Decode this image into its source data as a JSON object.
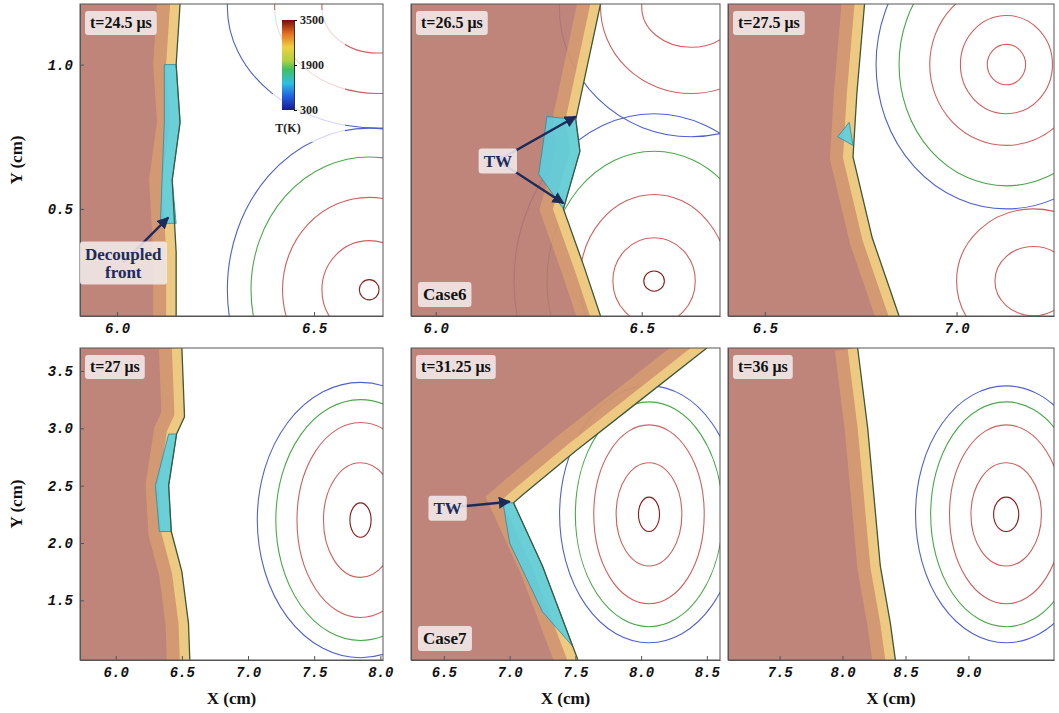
{
  "chart_data": [
    {
      "type": "field",
      "title": "t=24.5 μs",
      "y_label": "Y (cm)",
      "xlim": [
        5.906,
        6.675
      ],
      "ylim": [
        0.129,
        1.21
      ],
      "xticks": [
        {
          "value": 6.0,
          "label": "6.0"
        },
        6.5
      ],
      "yticks": [
        0.5,
        {
          "value": 1.0,
          "label": "1.0"
        }
      ],
      "front": {
        "x": [
          6.16,
          6.15,
          6.16,
          6.14,
          6.15,
          6.15
        ],
        "y": [
          1.21,
          1.0,
          0.8,
          0.6,
          0.35,
          0.129
        ]
      },
      "pocket": {
        "x": [
          6.12,
          6.15,
          6.16,
          6.14,
          6.15,
          6.11,
          6.12
        ],
        "y": [
          1.0,
          1.0,
          0.8,
          0.6,
          0.45,
          0.45,
          0.8
        ]
      },
      "contours": [
        {
          "cx": 6.64,
          "cy": 0.22,
          "rx": 0.025,
          "ry": 0.035,
          "color": "#8b1a1a"
        },
        {
          "cx": 6.64,
          "cy": 0.22,
          "rx": 0.12,
          "ry": 0.17,
          "color": "#d06060"
        },
        {
          "cx": 6.64,
          "cy": 0.22,
          "rx": 0.22,
          "ry": 0.32,
          "color": "#d06060"
        },
        {
          "cx": 6.64,
          "cy": 0.22,
          "rx": 0.3,
          "ry": 0.46,
          "color": "#4aa84a"
        },
        {
          "cx": 6.64,
          "cy": 0.22,
          "rx": 0.36,
          "ry": 0.56,
          "color": "#5060d0"
        },
        {
          "cx": 6.66,
          "cy": 1.2,
          "rx": 0.14,
          "ry": 0.16,
          "color": "#d06060"
        },
        {
          "cx": 6.66,
          "cy": 1.2,
          "rx": 0.26,
          "ry": 0.3,
          "color": "#d06060"
        },
        {
          "cx": 6.66,
          "cy": 1.2,
          "rx": 0.38,
          "ry": 0.42,
          "color": "#5060d0"
        }
      ],
      "colorbar": {
        "range": [
          300,
          3500
        ],
        "ticks": [
          300,
          1900,
          3500
        ],
        "label": "T(K)"
      },
      "annotations": [
        {
          "text": "Decoupled front",
          "points": [
            [
              6.13,
              0.47
            ]
          ]
        }
      ]
    },
    {
      "type": "field",
      "title": "t=26.5 μs",
      "tick_labels": "x",
      "xlim": [
        5.94,
        6.69
      ],
      "ylim": [
        0.129,
        1.21
      ],
      "xticks": [
        {
          "value": 6.0,
          "label": "6.0"
        },
        6.5
      ],
      "front": {
        "x": [
          6.4,
          6.34,
          6.35,
          6.31,
          6.36,
          6.4
        ],
        "y": [
          1.21,
          0.81,
          0.7,
          0.5,
          0.3,
          0.129
        ]
      },
      "pocket": {
        "x": [
          6.27,
          6.34,
          6.35,
          6.31,
          6.25
        ],
        "y": [
          0.82,
          0.81,
          0.7,
          0.5,
          0.62
        ]
      },
      "contours": [
        {
          "cx": 6.53,
          "cy": 0.25,
          "rx": 0.025,
          "ry": 0.035,
          "color": "#8b1a1a"
        },
        {
          "cx": 6.53,
          "cy": 0.25,
          "rx": 0.1,
          "ry": 0.15,
          "color": "#d06060"
        },
        {
          "cx": 6.53,
          "cy": 0.25,
          "rx": 0.18,
          "ry": 0.3,
          "color": "#d06060"
        },
        {
          "cx": 6.53,
          "cy": 0.25,
          "rx": 0.26,
          "ry": 0.45,
          "color": "#4aa84a"
        },
        {
          "cx": 6.53,
          "cy": 0.25,
          "rx": 0.34,
          "ry": 0.58,
          "color": "#5060d0"
        },
        {
          "cx": 6.62,
          "cy": 1.2,
          "rx": 0.12,
          "ry": 0.14,
          "color": "#d06060"
        },
        {
          "cx": 6.62,
          "cy": 1.2,
          "rx": 0.22,
          "ry": 0.3,
          "color": "#d06060"
        },
        {
          "cx": 6.62,
          "cy": 1.2,
          "rx": 0.32,
          "ry": 0.45,
          "color": "#5060d0"
        }
      ],
      "annotations": [
        {
          "text": "TW",
          "points": [
            [
              6.34,
              0.82
            ],
            [
              6.31,
              0.52
            ]
          ]
        },
        {
          "text": "Case6"
        }
      ]
    },
    {
      "type": "field",
      "title": "t=27.5 μs",
      "tick_labels": "x",
      "xlim": [
        6.404,
        7.254
      ],
      "ylim": [
        0.129,
        1.21
      ],
      "xticks": [
        6.5,
        {
          "value": 7.0,
          "label": "7.0"
        }
      ],
      "front": {
        "x": [
          6.76,
          6.74,
          6.73,
          6.78,
          6.85
        ],
        "y": [
          1.21,
          0.9,
          0.68,
          0.4,
          0.129
        ]
      },
      "pocket": {
        "x": [
          6.69,
          6.73,
          6.72
        ],
        "y": [
          0.75,
          0.72,
          0.8
        ]
      },
      "contours": [
        {
          "cx": 7.13,
          "cy": 1.0,
          "rx": 0.05,
          "ry": 0.07,
          "color": "#d06060"
        },
        {
          "cx": 7.13,
          "cy": 1.0,
          "rx": 0.12,
          "ry": 0.17,
          "color": "#d06060"
        },
        {
          "cx": 7.13,
          "cy": 1.0,
          "rx": 0.2,
          "ry": 0.28,
          "color": "#d06060"
        },
        {
          "cx": 7.13,
          "cy": 1.0,
          "rx": 0.28,
          "ry": 0.42,
          "color": "#4aa84a"
        },
        {
          "cx": 7.13,
          "cy": 1.0,
          "rx": 0.34,
          "ry": 0.5,
          "color": "#5060d0"
        },
        {
          "cx": 7.2,
          "cy": 0.25,
          "rx": 0.1,
          "ry": 0.12,
          "color": "#d06060"
        },
        {
          "cx": 7.2,
          "cy": 0.25,
          "rx": 0.2,
          "ry": 0.25,
          "color": "#d06060"
        }
      ]
    },
    {
      "type": "field",
      "title": "t=27 μs",
      "y_label": "Y (cm)",
      "x_label": "X (cm)",
      "xlim": [
        5.73,
        8.02
      ],
      "ylim": [
        0.98,
        3.7
      ],
      "xticks": [
        {
          "value": 6.0,
          "label": "6.0"
        },
        6.5,
        {
          "value": 7.0,
          "label": "7.0"
        },
        7.5,
        {
          "value": 8.0,
          "label": "8.0"
        }
      ],
      "yticks": [
        1.5,
        {
          "value": 2.0,
          "label": "2.0"
        },
        2.5,
        {
          "value": 3.0,
          "label": "3.0"
        },
        3.5
      ],
      "front": {
        "x": [
          6.5,
          6.52,
          6.46,
          6.4,
          6.42,
          6.5,
          6.55,
          6.56
        ],
        "y": [
          3.7,
          3.1,
          2.95,
          2.5,
          2.1,
          1.75,
          1.3,
          0.98
        ]
      },
      "pocket": {
        "x": [
          6.4,
          6.46,
          6.4,
          6.42,
          6.33,
          6.3
        ],
        "y": [
          2.95,
          2.95,
          2.5,
          2.1,
          2.1,
          2.5
        ]
      },
      "contours": [
        {
          "cx": 7.85,
          "cy": 2.2,
          "rx": 0.08,
          "ry": 0.15,
          "color": "#8b1a1a"
        },
        {
          "cx": 7.85,
          "cy": 2.2,
          "rx": 0.28,
          "ry": 0.5,
          "color": "#d06060"
        },
        {
          "cx": 7.85,
          "cy": 2.2,
          "rx": 0.48,
          "ry": 0.85,
          "color": "#d06060"
        },
        {
          "cx": 7.85,
          "cy": 2.2,
          "rx": 0.64,
          "ry": 1.05,
          "color": "#4aa84a"
        },
        {
          "cx": 7.85,
          "cy": 2.2,
          "rx": 0.78,
          "ry": 1.2,
          "color": "#5060d0"
        }
      ]
    },
    {
      "type": "field",
      "title": "t=31.25 μs",
      "x_label": "X (cm)",
      "tick_labels": "x",
      "xlim": [
        6.25,
        8.6
      ],
      "ylim": [
        0.98,
        3.7
      ],
      "xticks": [
        6.5,
        {
          "value": 7.0,
          "label": "7.0"
        },
        7.5,
        {
          "value": 8.0,
          "label": "8.0"
        },
        8.5
      ],
      "front": {
        "x": [
          8.5,
          8.0,
          7.5,
          7.1,
          7.03,
          7.25,
          7.48,
          7.52
        ],
        "y": [
          3.7,
          3.25,
          2.8,
          2.42,
          2.35,
          1.8,
          1.1,
          0.98
        ]
      },
      "pocket": {
        "x": [
          6.95,
          7.03,
          7.25,
          7.48,
          7.25,
          7.0
        ],
        "y": [
          2.35,
          2.35,
          1.8,
          1.1,
          1.4,
          2.0
        ]
      },
      "contours": [
        {
          "cx": 8.06,
          "cy": 2.25,
          "rx": 0.08,
          "ry": 0.15,
          "color": "#8b1a1a"
        },
        {
          "cx": 8.06,
          "cy": 2.25,
          "rx": 0.25,
          "ry": 0.45,
          "color": "#d06060"
        },
        {
          "cx": 8.06,
          "cy": 2.25,
          "rx": 0.42,
          "ry": 0.78,
          "color": "#d06060"
        },
        {
          "cx": 8.06,
          "cy": 2.25,
          "rx": 0.56,
          "ry": 0.98,
          "color": "#4aa84a"
        },
        {
          "cx": 8.06,
          "cy": 2.25,
          "rx": 0.68,
          "ry": 1.12,
          "color": "#5060d0"
        }
      ],
      "annotations": [
        {
          "text": "TW",
          "points": [
            [
              7.0,
              2.36
            ]
          ]
        },
        {
          "text": "Case7"
        }
      ]
    },
    {
      "type": "field",
      "title": "t=36 μs",
      "x_label": "X (cm)",
      "tick_labels": "x",
      "xlim": [
        7.09,
        9.68
      ],
      "ylim": [
        0.98,
        3.7
      ],
      "xticks": [
        7.5,
        {
          "value": 8.0,
          "label": "8.0"
        },
        8.5,
        {
          "value": 9.0,
          "label": "9.0"
        }
      ],
      "front": {
        "x": [
          8.12,
          8.2,
          8.25,
          8.3,
          8.38,
          8.42
        ],
        "y": [
          3.7,
          3.0,
          2.4,
          1.8,
          1.3,
          0.98
        ]
      },
      "contours": [
        {
          "cx": 9.3,
          "cy": 2.25,
          "rx": 0.1,
          "ry": 0.15,
          "color": "#8b1a1a"
        },
        {
          "cx": 9.3,
          "cy": 2.25,
          "rx": 0.28,
          "ry": 0.45,
          "color": "#d06060"
        },
        {
          "cx": 9.3,
          "cy": 2.25,
          "rx": 0.45,
          "ry": 0.78,
          "color": "#d06060"
        },
        {
          "cx": 9.3,
          "cy": 2.25,
          "rx": 0.6,
          "ry": 0.98,
          "color": "#4aa84a"
        },
        {
          "cx": 9.3,
          "cy": 2.25,
          "rx": 0.72,
          "ry": 1.12,
          "color": "#5060d0"
        }
      ]
    }
  ]
}
